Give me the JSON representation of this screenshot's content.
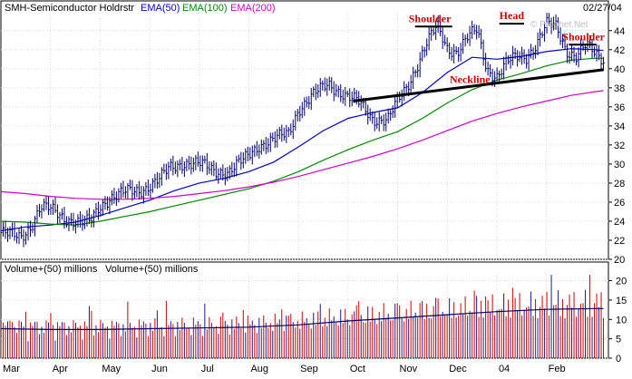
{
  "chart_data": {
    "type": "line",
    "title": "SMH-Semiconductor Holdrstr",
    "date_label": "02/27/04",
    "watermark": "© Prophet.Net",
    "legend": [
      {
        "name": "EMA(50)",
        "color": "#0000cc"
      },
      {
        "name": "EMA(100)",
        "color": "#008800"
      },
      {
        "name": "EMA(200)",
        "color": "#cc00cc"
      }
    ],
    "price_axis": {
      "ylim": [
        20,
        45.5
      ],
      "ticks": [
        20,
        22,
        24,
        26,
        28,
        30,
        32,
        34,
        36,
        38,
        40,
        42,
        44
      ],
      "position": "right"
    },
    "x_axis": {
      "ticks": [
        "Mar",
        "Apr",
        "May",
        "Jun",
        "Jul",
        "Aug",
        "Sep",
        "Oct",
        "Nov",
        "Dec",
        "04",
        "Feb"
      ],
      "xlim": [
        0,
        12.25
      ]
    },
    "price_series": {
      "name": "price",
      "color": "#000066",
      "x": [
        0,
        0.2,
        0.4,
        0.6,
        0.8,
        1.0,
        1.2,
        1.4,
        1.6,
        1.8,
        2.0,
        2.2,
        2.5,
        2.8,
        3.0,
        3.2,
        3.4,
        3.7,
        4.0,
        4.3,
        4.6,
        4.9,
        5.2,
        5.5,
        5.8,
        6.0,
        6.3,
        6.6,
        6.8,
        7.0,
        7.2,
        7.5,
        7.8,
        8.0,
        8.2,
        8.4,
        8.6,
        8.8,
        9.0,
        9.2,
        9.4,
        9.6,
        9.8,
        10.0,
        10.2,
        10.4,
        10.6,
        10.8,
        11.0,
        11.2,
        11.4,
        11.6,
        11.8,
        12.0,
        12.15
      ],
      "y": [
        22.8,
        22.5,
        22.3,
        23.5,
        25.5,
        25.2,
        24.6,
        24.2,
        23.8,
        23.9,
        25.6,
        26.5,
        27.0,
        27.2,
        27.8,
        28.4,
        29.5,
        30.2,
        30.0,
        29.3,
        29.2,
        30.4,
        32.0,
        32.5,
        33.2,
        35.8,
        37.2,
        38.4,
        37.8,
        37.0,
        36.5,
        34.8,
        34.6,
        36.5,
        38.2,
        40.5,
        42.8,
        44.4,
        42.2,
        41.8,
        43.2,
        44.0,
        40.0,
        39.2,
        40.6,
        41.2,
        41.3,
        42.6,
        44.6,
        44.4,
        42.0,
        41.3,
        42.4,
        41.5,
        41.0
      ]
    },
    "ema_series": [
      {
        "name": "EMA(50)",
        "color": "#0000cc",
        "x": [
          0,
          0.5,
          1.0,
          1.5,
          2.0,
          2.5,
          3.0,
          3.5,
          4.0,
          4.5,
          5.0,
          5.5,
          6.0,
          6.5,
          7.0,
          7.5,
          8.0,
          8.5,
          9.0,
          9.5,
          10.0,
          10.5,
          11.0,
          11.5,
          12.0,
          12.15
        ],
        "y": [
          23.0,
          23.4,
          23.6,
          23.9,
          24.6,
          25.4,
          26.2,
          27.2,
          28.0,
          28.5,
          29.2,
          30.2,
          31.8,
          33.5,
          34.8,
          35.4,
          35.9,
          37.5,
          39.6,
          41.2,
          41.0,
          41.3,
          41.8,
          42.1,
          42.0,
          41.9
        ]
      },
      {
        "name": "EMA(100)",
        "color": "#008800",
        "x": [
          0,
          0.5,
          1.0,
          1.5,
          2.0,
          2.5,
          3.0,
          3.5,
          4.0,
          4.5,
          5.0,
          5.5,
          6.0,
          6.5,
          7.0,
          7.5,
          8.0,
          8.5,
          9.0,
          9.5,
          10.0,
          10.5,
          11.0,
          11.5,
          12.0,
          12.15
        ],
        "y": [
          24.0,
          23.9,
          23.7,
          23.6,
          24.0,
          24.5,
          25.0,
          25.6,
          26.2,
          26.8,
          27.4,
          28.2,
          29.2,
          30.4,
          31.5,
          32.5,
          33.4,
          34.8,
          36.4,
          37.8,
          38.8,
          39.5,
          40.3,
          40.9,
          41.1,
          41.1
        ]
      },
      {
        "name": "EMA(200)",
        "color": "#cc00cc",
        "x": [
          0,
          0.5,
          1.0,
          1.5,
          2.0,
          2.5,
          3.0,
          3.5,
          4.0,
          4.5,
          5.0,
          5.5,
          6.0,
          6.5,
          7.0,
          7.5,
          8.0,
          8.5,
          9.0,
          9.5,
          10.0,
          10.5,
          11.0,
          11.5,
          12.0,
          12.15
        ],
        "y": [
          27.1,
          26.9,
          26.6,
          26.4,
          26.3,
          26.3,
          26.4,
          26.6,
          26.9,
          27.2,
          27.6,
          28.1,
          28.7,
          29.4,
          30.1,
          30.8,
          31.6,
          32.5,
          33.5,
          34.5,
          35.3,
          36.0,
          36.6,
          37.2,
          37.6,
          37.7
        ]
      }
    ],
    "neckline": {
      "x": [
        7.1,
        12.15
      ],
      "y": [
        36.6,
        39.9
      ],
      "label": "Neckline"
    },
    "annotations": [
      {
        "text": "Shoulder",
        "x": 8.65,
        "y": 44.9,
        "bar_x": [
          8.35,
          9.1
        ]
      },
      {
        "text": "Head",
        "x": 10.3,
        "y": 45.2,
        "bar_x": [
          10.05,
          10.55
        ]
      },
      {
        "text": "Shoulder",
        "x": 11.75,
        "y": 43.0,
        "bar_x": [
          11.45,
          12.0
        ]
      }
    ],
    "volume_legend": [
      "Volume+(50) millions",
      "Volume+(50) millions"
    ],
    "volume_axis": {
      "ylim": [
        0,
        22
      ],
      "ticks": [
        0,
        5,
        10,
        15,
        20
      ],
      "position": "right"
    },
    "volume_ma": {
      "name": "Volume+(50)",
      "color": "#000066",
      "x": [
        0,
        1,
        2,
        3,
        4,
        5,
        6,
        7,
        8,
        9,
        10,
        11,
        12,
        12.15
      ],
      "y": [
        7.6,
        7.4,
        7.4,
        7.6,
        7.8,
        8.0,
        8.6,
        9.6,
        10.4,
        11.2,
        12.0,
        12.6,
        12.8,
        12.8
      ]
    }
  }
}
